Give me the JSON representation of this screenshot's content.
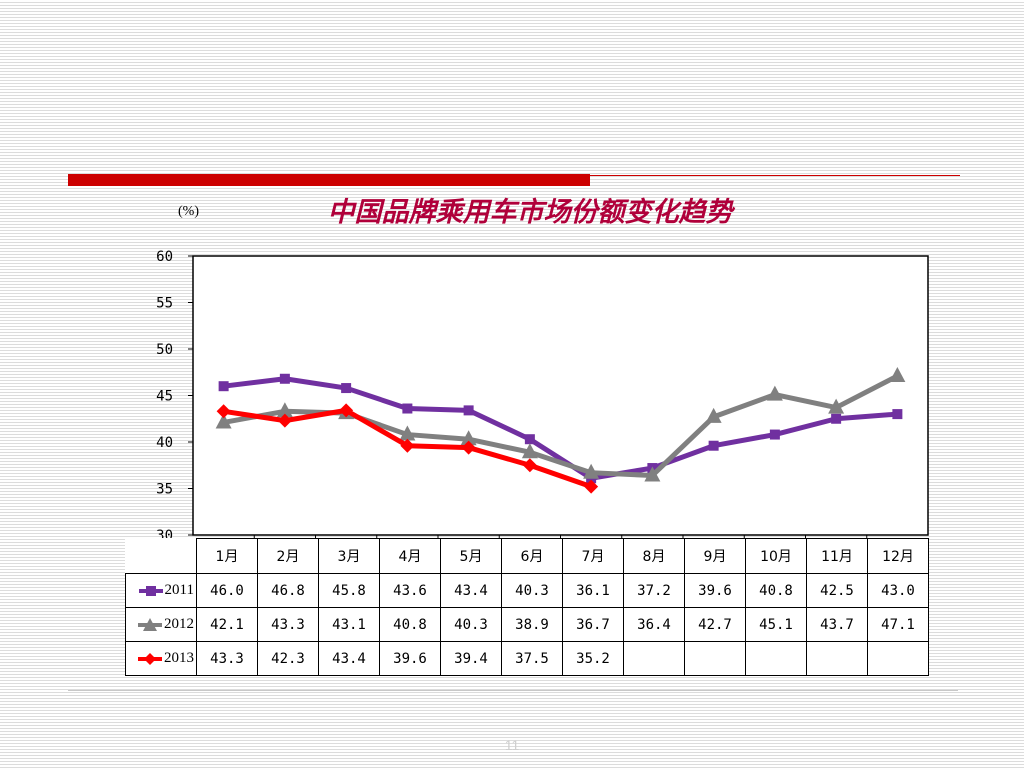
{
  "colors": {
    "accent": "#cc0000",
    "title": "#b0003a",
    "series_2011": "#7030a0",
    "series_2012": "#808080",
    "series_2013": "#ff0000"
  },
  "page_number": "11",
  "chart_data": {
    "type": "line",
    "title": "中国品牌乘用车市场份额变化趋势",
    "ylabel": "(%)",
    "xlabel": "",
    "ylim": [
      30,
      60
    ],
    "yticks": [
      30,
      35,
      40,
      45,
      50,
      55,
      60
    ],
    "grid": false,
    "legend": "data-table",
    "categories": [
      "1月",
      "2月",
      "3月",
      "4月",
      "5月",
      "6月",
      "7月",
      "8月",
      "9月",
      "10月",
      "11月",
      "12月"
    ],
    "series": [
      {
        "name": "2011",
        "marker": "square",
        "values": [
          46.0,
          46.8,
          45.8,
          43.6,
          43.4,
          40.3,
          36.1,
          37.2,
          39.6,
          40.8,
          42.5,
          43.0
        ],
        "labels": [
          "46.0",
          "46.8",
          "45.8",
          "43.6",
          "43.4",
          "40.3",
          "36.1",
          "37.2",
          "39.6",
          "40.8",
          "42.5",
          "43.0"
        ]
      },
      {
        "name": "2012",
        "marker": "triangle",
        "values": [
          42.1,
          43.3,
          43.1,
          40.8,
          40.3,
          38.9,
          36.7,
          36.4,
          42.7,
          45.1,
          43.7,
          47.1
        ],
        "labels": [
          "42.1",
          "43.3",
          "43.1",
          "40.8",
          "40.3",
          "38.9",
          "36.7",
          "36.4",
          "42.7",
          "45.1",
          "43.7",
          "47.1"
        ]
      },
      {
        "name": "2013",
        "marker": "diamond",
        "values": [
          43.3,
          42.3,
          43.4,
          39.6,
          39.4,
          37.5,
          35.2,
          null,
          null,
          null,
          null,
          null
        ],
        "labels": [
          "43.3",
          "42.3",
          "43.4",
          "39.6",
          "39.4",
          "37.5",
          "35.2",
          "",
          "",
          "",
          "",
          ""
        ]
      }
    ]
  }
}
